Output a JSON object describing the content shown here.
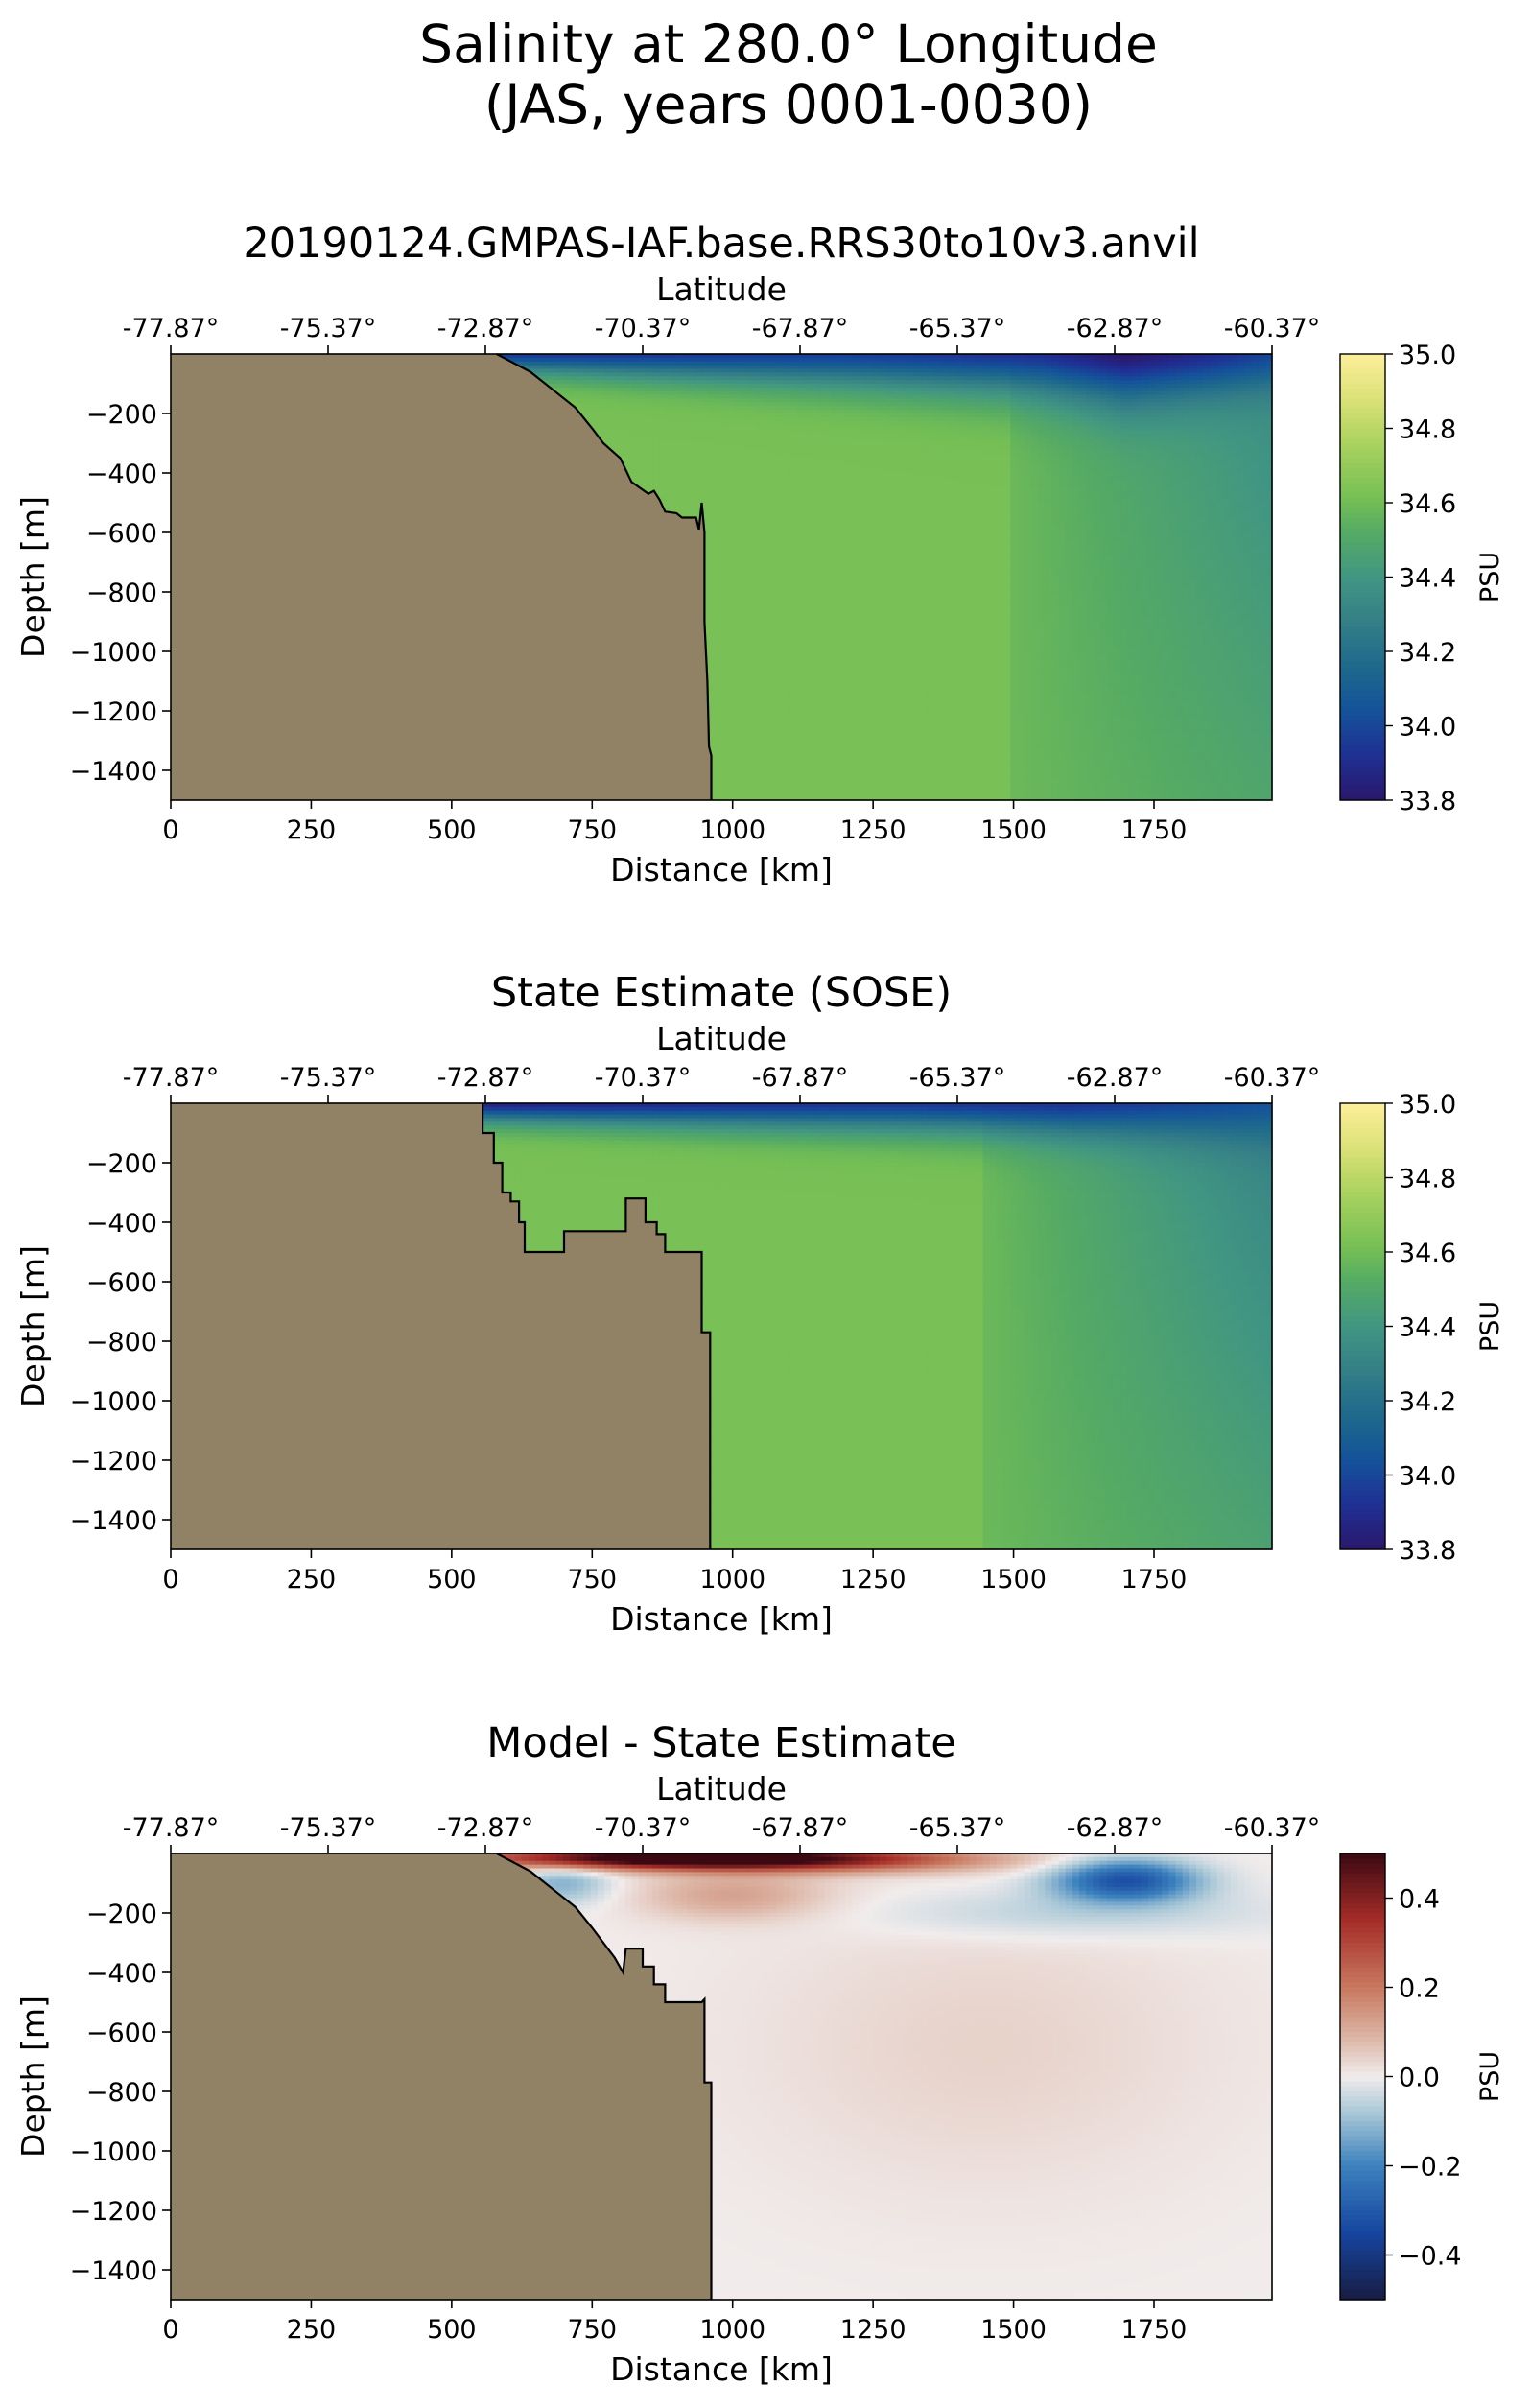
{
  "figure": {
    "title_line1": "Salinity at 280.0° Longitude",
    "title_line2": "(JAS, years 0001-0030)"
  },
  "chart_data": [
    {
      "type": "heatmap",
      "title": "20190124.GMPAS-IAF.base.RRS30to10v3.anvil",
      "xlabel": "Distance [km]",
      "ylabel": "Depth [m]",
      "top_xlabel": "Latitude",
      "xlim": [
        0,
        1960
      ],
      "ylim": [
        -1500,
        0
      ],
      "x_ticks": [
        0,
        250,
        500,
        750,
        1000,
        1250,
        1500,
        1750
      ],
      "y_ticks": [
        -200,
        -400,
        -600,
        -800,
        -1000,
        -1200,
        -1400
      ],
      "top_ticks_km": [
        0,
        280,
        560,
        840,
        1120,
        1400,
        1680,
        1960
      ],
      "top_tick_labels": [
        "-77.87°",
        "-75.37°",
        "-72.87°",
        "-70.37°",
        "-67.87°",
        "-65.37°",
        "-62.87°",
        "-60.37°"
      ],
      "colorbar": {
        "label": "PSU",
        "vmin": 33.8,
        "vmax": 35.0,
        "ticks": [
          33.8,
          34.0,
          34.2,
          34.4,
          34.6,
          34.8,
          35.0
        ],
        "tick_labels": [
          "33.8",
          "34.0",
          "34.2",
          "34.4",
          "34.6",
          "34.8",
          "35.0"
        ],
        "colormap": "haline"
      },
      "land_color": "#918266",
      "bathymetry": [
        [
          580,
          0
        ],
        [
          600,
          -20
        ],
        [
          640,
          -60
        ],
        [
          680,
          -120
        ],
        [
          720,
          -180
        ],
        [
          750,
          -250
        ],
        [
          770,
          -300
        ],
        [
          800,
          -350
        ],
        [
          820,
          -430
        ],
        [
          850,
          -470
        ],
        [
          860,
          -460
        ],
        [
          870,
          -490
        ],
        [
          880,
          -530
        ],
        [
          900,
          -535
        ],
        [
          910,
          -550
        ],
        [
          935,
          -550
        ],
        [
          940,
          -590
        ],
        [
          945,
          -500
        ],
        [
          950,
          -600
        ],
        [
          950,
          -900
        ],
        [
          955,
          -1100
        ],
        [
          958,
          -1320
        ],
        [
          962,
          -1350
        ],
        [
          962,
          -1500
        ]
      ],
      "field_description": "fresh surface layer (~33.8-34.1) over saltier deep water (~34.6); freshest near 1600-1800 km at surface",
      "field": {
        "deep": 34.62,
        "surface": [
          [
            600,
            33.95
          ],
          [
            800,
            33.95
          ],
          [
            1200,
            33.98
          ],
          [
            1550,
            33.92
          ],
          [
            1700,
            33.8
          ],
          [
            1850,
            33.9
          ],
          [
            1960,
            34.0
          ]
        ],
        "surface_depth": [
          [
            600,
            60
          ],
          [
            1000,
            90
          ],
          [
            1500,
            130
          ],
          [
            1700,
            160
          ],
          [
            1960,
            110
          ]
        ],
        "east_deep": [
          [
            1500,
            34.58
          ],
          [
            1960,
            34.35
          ]
        ]
      }
    },
    {
      "type": "heatmap",
      "title": "State Estimate (SOSE)",
      "xlabel": "Distance [km]",
      "ylabel": "Depth [m]",
      "top_xlabel": "Latitude",
      "xlim": [
        0,
        1960
      ],
      "ylim": [
        -1500,
        0
      ],
      "x_ticks": [
        0,
        250,
        500,
        750,
        1000,
        1250,
        1500,
        1750
      ],
      "y_ticks": [
        -200,
        -400,
        -600,
        -800,
        -1000,
        -1200,
        -1400
      ],
      "top_ticks_km": [
        0,
        280,
        560,
        840,
        1120,
        1400,
        1680,
        1960
      ],
      "top_tick_labels": [
        "-77.87°",
        "-75.37°",
        "-72.87°",
        "-70.37°",
        "-67.87°",
        "-65.37°",
        "-62.87°",
        "-60.37°"
      ],
      "colorbar": {
        "label": "PSU",
        "vmin": 33.8,
        "vmax": 35.0,
        "ticks": [
          33.8,
          34.0,
          34.2,
          34.4,
          34.6,
          34.8,
          35.0
        ],
        "tick_labels": [
          "33.8",
          "34.0",
          "34.2",
          "34.4",
          "34.6",
          "34.8",
          "35.0"
        ],
        "colormap": "haline"
      },
      "land_color": "#918266",
      "bathymetry": [
        [
          555,
          0
        ],
        [
          555,
          -100
        ],
        [
          575,
          -100
        ],
        [
          575,
          -200
        ],
        [
          590,
          -200
        ],
        [
          590,
          -300
        ],
        [
          605,
          -300
        ],
        [
          605,
          -330
        ],
        [
          620,
          -330
        ],
        [
          620,
          -400
        ],
        [
          630,
          -400
        ],
        [
          630,
          -500
        ],
        [
          700,
          -500
        ],
        [
          700,
          -430
        ],
        [
          810,
          -430
        ],
        [
          810,
          -320
        ],
        [
          845,
          -320
        ],
        [
          845,
          -400
        ],
        [
          865,
          -400
        ],
        [
          865,
          -440
        ],
        [
          880,
          -440
        ],
        [
          880,
          -500
        ],
        [
          945,
          -500
        ],
        [
          945,
          -770
        ],
        [
          960,
          -770
        ],
        [
          960,
          -1500
        ]
      ],
      "field_description": "thin fresh surface layer (~33.8-34.0) over saltier deep water (~34.6)",
      "field": {
        "deep": 34.62,
        "surface": [
          [
            560,
            33.85
          ],
          [
            900,
            33.9
          ],
          [
            1300,
            33.95
          ],
          [
            1600,
            33.93
          ],
          [
            1960,
            34.05
          ]
        ],
        "surface_depth": [
          [
            560,
            60
          ],
          [
            1000,
            80
          ],
          [
            1500,
            100
          ],
          [
            1960,
            120
          ]
        ],
        "east_deep": [
          [
            1450,
            34.58
          ],
          [
            1960,
            34.3
          ]
        ]
      }
    },
    {
      "type": "heatmap",
      "title": "Model - State Estimate",
      "xlabel": "Distance [km]",
      "ylabel": "Depth [m]",
      "top_xlabel": "Latitude",
      "xlim": [
        0,
        1960
      ],
      "ylim": [
        -1500,
        0
      ],
      "x_ticks": [
        0,
        250,
        500,
        750,
        1000,
        1250,
        1500,
        1750
      ],
      "y_ticks": [
        -200,
        -400,
        -600,
        -800,
        -1000,
        -1200,
        -1400
      ],
      "top_ticks_km": [
        0,
        280,
        560,
        840,
        1120,
        1400,
        1680,
        1960
      ],
      "top_tick_labels": [
        "-77.87°",
        "-75.37°",
        "-72.87°",
        "-70.37°",
        "-67.87°",
        "-65.37°",
        "-62.87°",
        "-60.37°"
      ],
      "colorbar": {
        "label": "PSU",
        "vmin": -0.5,
        "vmax": 0.5,
        "ticks": [
          -0.4,
          -0.2,
          0.0,
          0.2,
          0.4
        ],
        "tick_labels": [
          "−0.4",
          "−0.2",
          "0.0",
          "0.2",
          "0.4"
        ],
        "colormap": "balance"
      },
      "land_color": "#918266",
      "bathymetry": [
        [
          580,
          0
        ],
        [
          600,
          -20
        ],
        [
          640,
          -60
        ],
        [
          680,
          -120
        ],
        [
          720,
          -180
        ],
        [
          750,
          -250
        ],
        [
          770,
          -300
        ],
        [
          790,
          -350
        ],
        [
          805,
          -400
        ],
        [
          810,
          -320
        ],
        [
          840,
          -320
        ],
        [
          840,
          -380
        ],
        [
          860,
          -380
        ],
        [
          860,
          -440
        ],
        [
          880,
          -440
        ],
        [
          880,
          -500
        ],
        [
          945,
          -500
        ],
        [
          950,
          -490
        ],
        [
          950,
          -770
        ],
        [
          962,
          -770
        ],
        [
          962,
          -1500
        ]
      ],
      "field_description": "positive anomaly (~+0.4) in top 30 m near 600-1100 km, negative (~-0.3) near 1650-1800 km at ~100 m, near-zero elsewhere",
      "field": {
        "blobs": [
          {
            "x": 850,
            "z": 15,
            "sx": 230,
            "sz": 25,
            "v": 0.5
          },
          {
            "x": 1150,
            "z": 20,
            "sx": 220,
            "sz": 30,
            "v": 0.3
          },
          {
            "x": 1000,
            "z": 140,
            "sx": 120,
            "sz": 60,
            "v": 0.12
          },
          {
            "x": 700,
            "z": 100,
            "sx": 60,
            "sz": 50,
            "v": -0.12
          },
          {
            "x": 1700,
            "z": 90,
            "sx": 90,
            "sz": 50,
            "v": -0.32
          },
          {
            "x": 1600,
            "z": 200,
            "sx": 250,
            "sz": 60,
            "v": -0.07
          },
          {
            "x": 1450,
            "z": 650,
            "sx": 300,
            "sz": 350,
            "v": 0.04
          }
        ]
      }
    }
  ]
}
